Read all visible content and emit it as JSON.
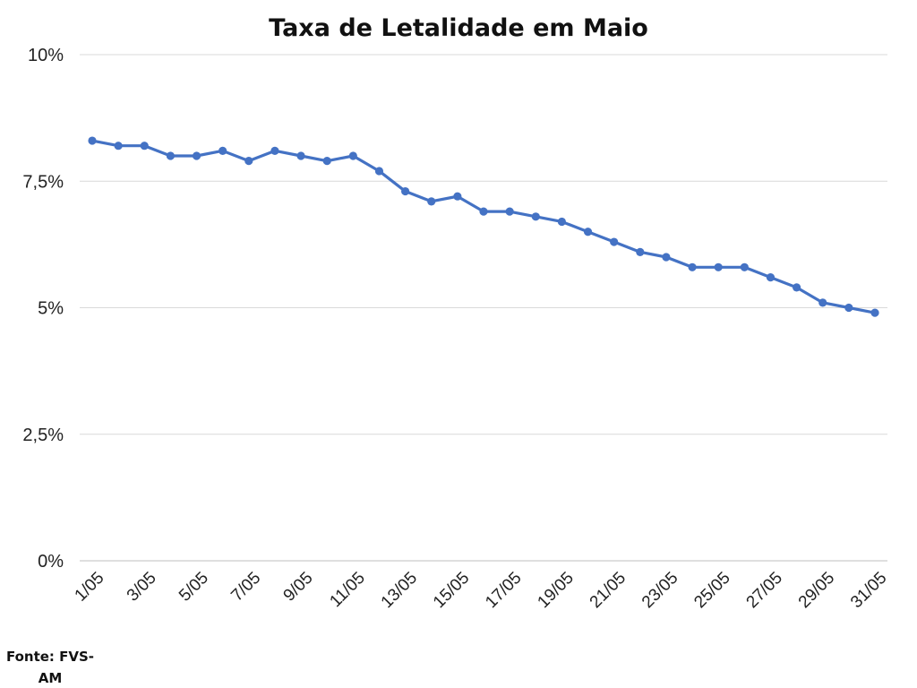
{
  "chart_data": {
    "type": "line",
    "title": "Taxa de Letalidade em Maio",
    "xlabel": "",
    "ylabel": "",
    "x": [
      "1/05",
      "2/05",
      "3/05",
      "4/05",
      "5/05",
      "6/05",
      "7/05",
      "8/05",
      "9/05",
      "10/05",
      "11/05",
      "12/05",
      "13/05",
      "14/05",
      "15/05",
      "16/05",
      "17/05",
      "18/05",
      "19/05",
      "20/05",
      "21/05",
      "22/05",
      "23/05",
      "24/05",
      "25/05",
      "26/05",
      "27/05",
      "28/05",
      "29/05",
      "30/05",
      "31/05"
    ],
    "x_tick_labels": [
      "1/05",
      "3/05",
      "5/05",
      "7/05",
      "9/05",
      "11/05",
      "13/05",
      "15/05",
      "17/05",
      "19/05",
      "21/05",
      "23/05",
      "25/05",
      "27/05",
      "29/05",
      "31/05"
    ],
    "series": [
      {
        "values": [
          8.3,
          8.2,
          8.2,
          8.0,
          8.0,
          8.1,
          7.9,
          8.1,
          8.0,
          7.9,
          8.0,
          7.7,
          7.3,
          7.1,
          7.2,
          6.9,
          6.9,
          6.8,
          6.7,
          6.5,
          6.3,
          6.1,
          6.0,
          5.8,
          5.8,
          5.8,
          5.6,
          5.4,
          5.1,
          5.0,
          4.9
        ]
      }
    ],
    "ylim": [
      0,
      10
    ],
    "y_ticks": [
      {
        "value": 0,
        "label": "0%"
      },
      {
        "value": 2.5,
        "label": "2,5%"
      },
      {
        "value": 5,
        "label": "5%"
      },
      {
        "value": 7.5,
        "label": "7,5%"
      },
      {
        "value": 10,
        "label": "10%"
      }
    ],
    "grid": true,
    "legend": "none",
    "colors": {
      "line": "#4472C4",
      "grid": "#d9d9d9",
      "axis": "#bfbfbf"
    }
  },
  "source_note": "Fonte: FVS-AM"
}
